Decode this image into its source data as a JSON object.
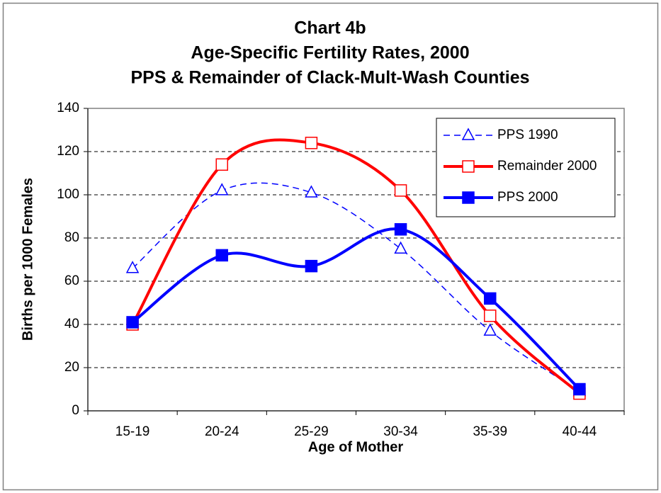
{
  "chart_data": {
    "type": "line",
    "title": [
      "Chart 4b",
      "Age-Specific Fertility Rates, 2000",
      "PPS & Remainder of Clack-Mult-Wash Counties"
    ],
    "xlabel": "Age of Mother",
    "ylabel": "Births per 1000 Females",
    "categories": [
      "15-19",
      "20-24",
      "25-29",
      "30-34",
      "35-39",
      "40-44"
    ],
    "series": [
      {
        "name": "PPS 1990",
        "color": "#0000ff",
        "line_style": "dashed",
        "marker": "triangle",
        "filled": false,
        "values": [
          66,
          102,
          101,
          75,
          37,
          9
        ]
      },
      {
        "name": "Remainder 2000",
        "color": "#ff0000",
        "line_style": "solid",
        "marker": "square",
        "filled": false,
        "values": [
          40,
          114,
          124,
          102,
          44,
          8
        ]
      },
      {
        "name": "PPS 2000",
        "color": "#0000ff",
        "line_style": "solid",
        "marker": "square",
        "filled": true,
        "values": [
          41,
          72,
          67,
          84,
          52,
          10
        ]
      }
    ],
    "ylim": [
      0,
      140
    ],
    "yticks": [
      0,
      20,
      40,
      60,
      80,
      100,
      120,
      140
    ],
    "grid": true,
    "smooth": true,
    "legend": "upper right"
  }
}
